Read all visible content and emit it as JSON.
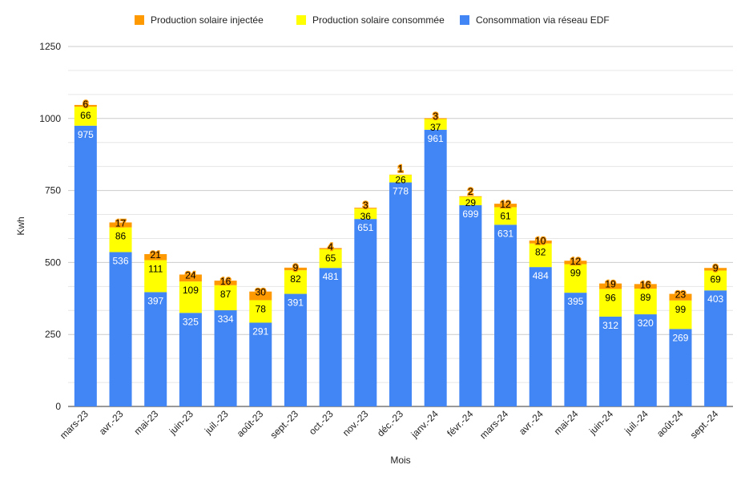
{
  "chart_data": {
    "type": "bar",
    "stacked": true,
    "xlabel": "Mois",
    "ylabel": "Kwh",
    "ylim": [
      0,
      1250
    ],
    "yticks": [
      0,
      250,
      500,
      750,
      1000,
      1250
    ],
    "grid": true,
    "legend_position": "top",
    "categories": [
      "mars-23",
      "avr.-23",
      "mai-23",
      "juin-23",
      "juil.-23",
      "août-23",
      "sept.-23",
      "oct.-23",
      "nov.-23",
      "déc.-23",
      "janv.-24",
      "févr.-24",
      "mars-24",
      "avr.-24",
      "mai-24",
      "juin-24",
      "juil.-24",
      "août-24",
      "sept.-24"
    ],
    "series": [
      {
        "name": "Consommation via réseau EDF",
        "color": "#4285f4",
        "label_color": "#ffffff",
        "values": [
          975,
          536,
          397,
          325,
          334,
          291,
          391,
          481,
          651,
          778,
          961,
          699,
          631,
          484,
          395,
          312,
          320,
          269,
          403
        ]
      },
      {
        "name": "Production solaire consommée",
        "color": "#ffff00",
        "label_color": "#000000",
        "values": [
          66,
          86,
          111,
          109,
          87,
          78,
          82,
          65,
          36,
          26,
          37,
          29,
          61,
          82,
          99,
          96,
          89,
          99,
          69
        ]
      },
      {
        "name": "Production solaire injectée",
        "color": "#ff9900",
        "label_color": "#000000",
        "values": [
          6,
          17,
          21,
          24,
          16,
          30,
          9,
          4,
          3,
          1,
          3,
          2,
          12,
          10,
          12,
          19,
          16,
          23,
          9
        ]
      }
    ],
    "legend_order": [
      2,
      1,
      0
    ]
  }
}
